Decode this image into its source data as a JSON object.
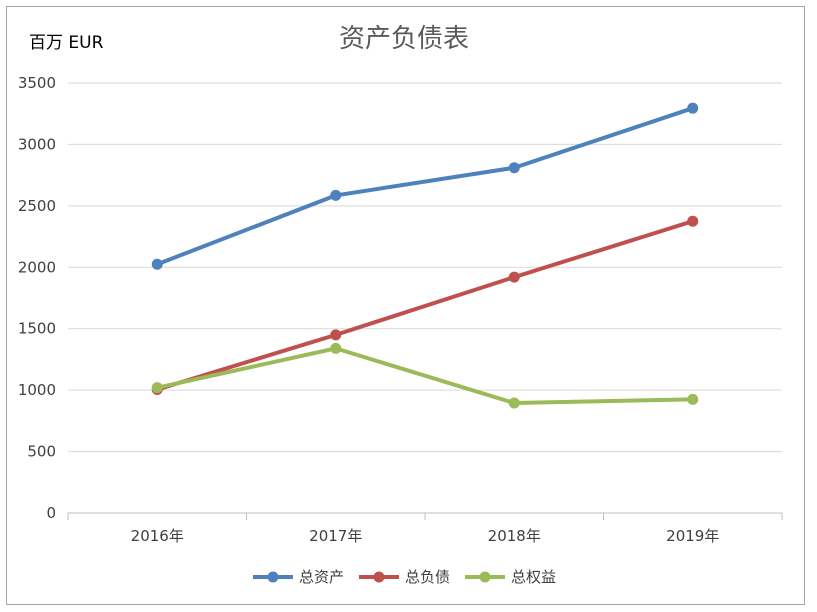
{
  "chart_data": {
    "type": "line",
    "title": "资产负债表",
    "ylabel": "百万 EUR",
    "xlabel": "",
    "categories": [
      "2016年",
      "2017年",
      "2018年",
      "2019年"
    ],
    "ylim": [
      0,
      3500
    ],
    "yticks": [
      0,
      500,
      1000,
      1500,
      2000,
      2500,
      3000,
      3500
    ],
    "grid": true,
    "legend": "bottom",
    "series": [
      {
        "name": "总资产",
        "color": "#4f81bd",
        "values": [
          2025,
          2585,
          2810,
          3295
        ]
      },
      {
        "name": "总负债",
        "color": "#c0504d",
        "values": [
          1005,
          1450,
          1920,
          2375
        ]
      },
      {
        "name": "总权益",
        "color": "#9bbb59",
        "values": [
          1020,
          1340,
          895,
          925
        ]
      }
    ]
  }
}
